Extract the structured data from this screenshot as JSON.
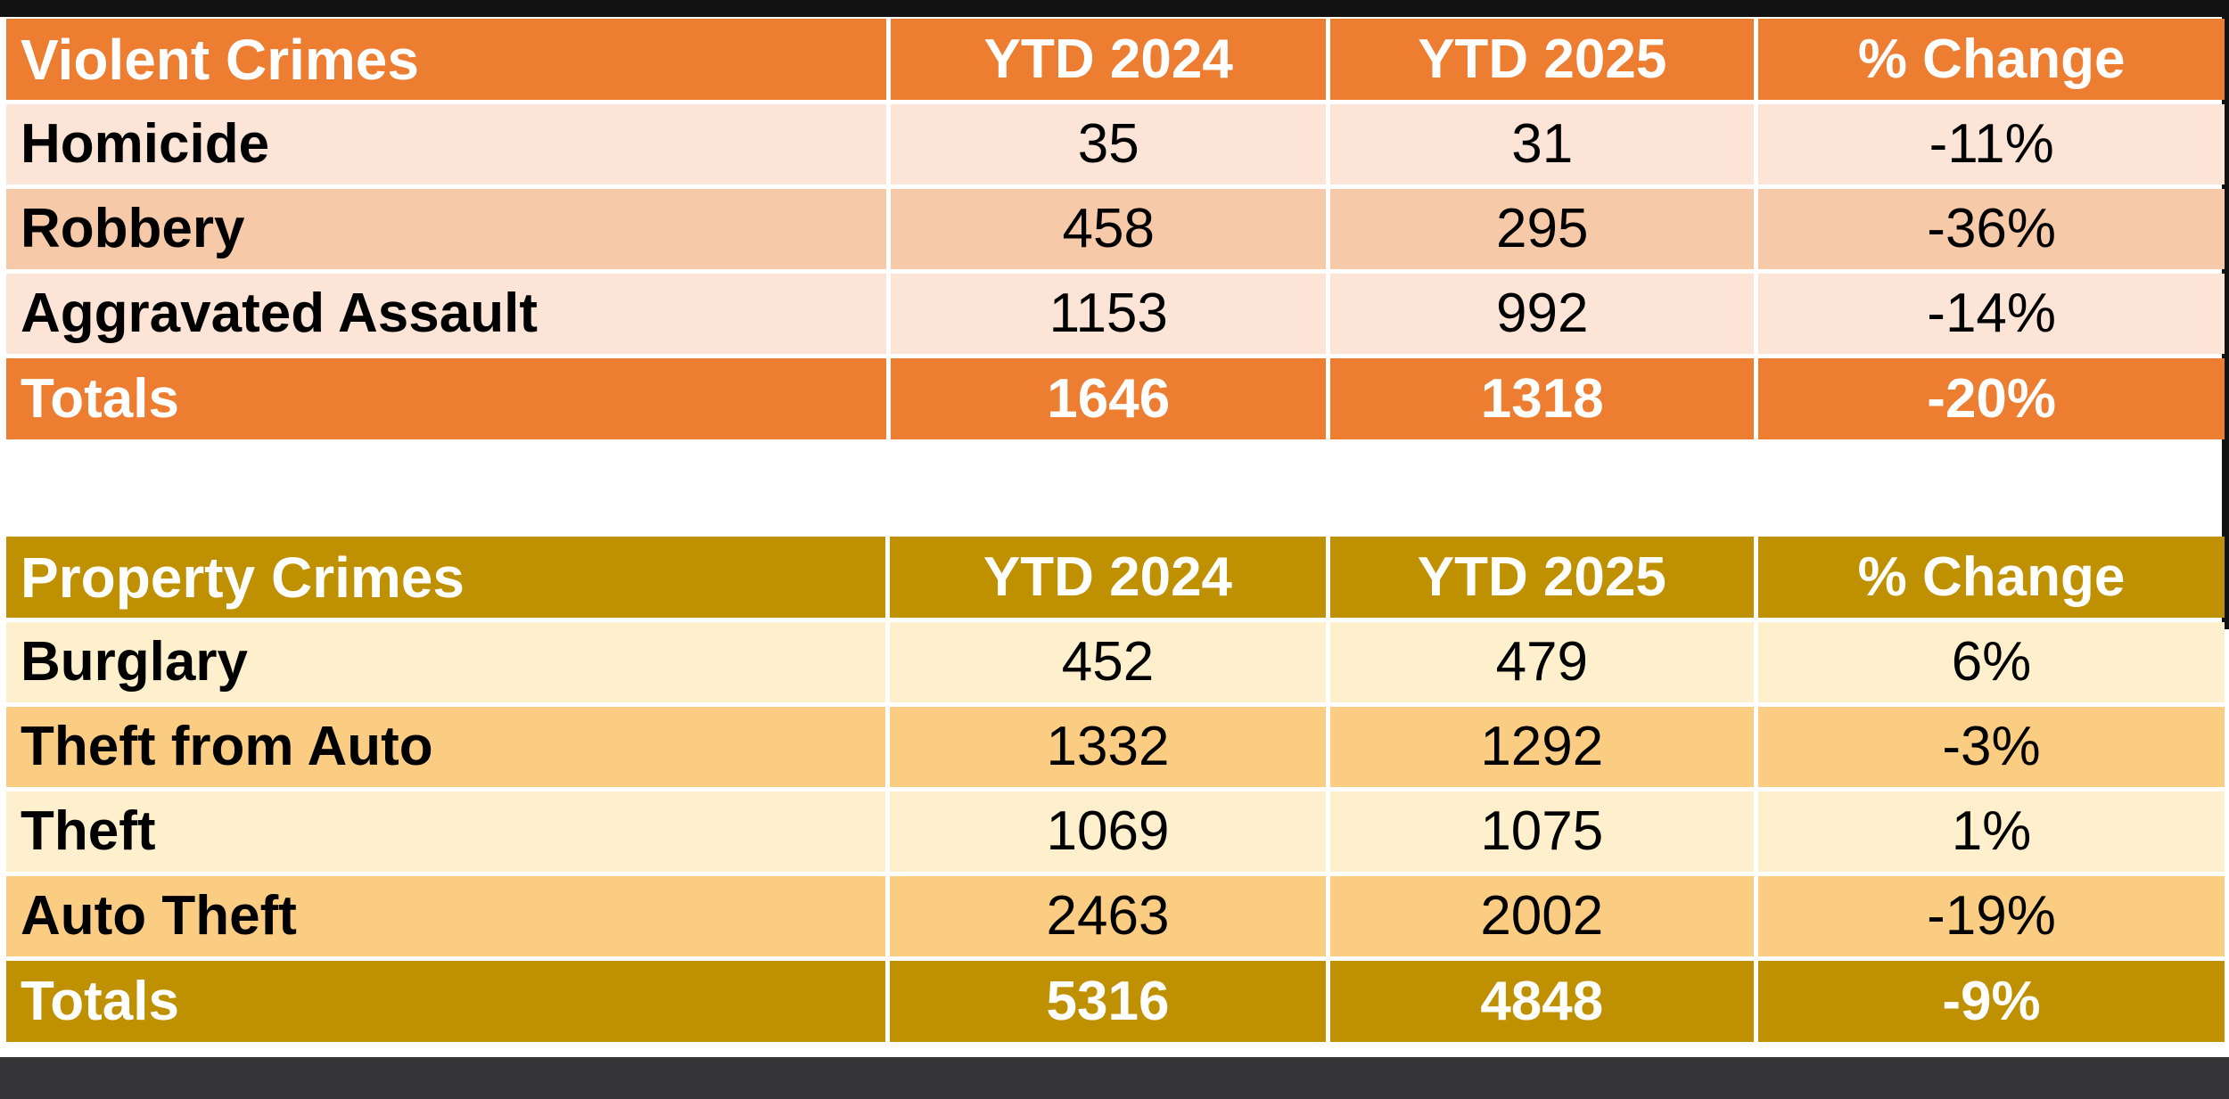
{
  "chrome": {
    "top_bar_color": "#111111",
    "right_edge_color": "#111111",
    "bottom_bar_color": "#353537",
    "page_background": "#ffffff"
  },
  "violent_table": {
    "title": "Violent Crimes",
    "columns": [
      "YTD 2024",
      "YTD 2025",
      "% Change"
    ],
    "theme": {
      "header_bg": "#ED7D31",
      "row_light": "#FCE4D6",
      "row_dark": "#F6C9A9",
      "header_text": "#ffffff",
      "body_text": "#000000"
    },
    "rows": [
      {
        "label": "Homicide",
        "ytd2024": "35",
        "ytd2025": "31",
        "pct_change": "-11%"
      },
      {
        "label": "Robbery",
        "ytd2024": "458",
        "ytd2025": "295",
        "pct_change": "-36%"
      },
      {
        "label": "Aggravated Assault",
        "ytd2024": "1153",
        "ytd2025": "992",
        "pct_change": "-14%"
      }
    ],
    "totals": {
      "label": "Totals",
      "ytd2024": "1646",
      "ytd2025": "1318",
      "pct_change": "-20%"
    }
  },
  "property_table": {
    "title": "Property Crimes",
    "columns": [
      "YTD 2024",
      "YTD 2025",
      "% Change"
    ],
    "theme": {
      "header_bg": "#BF9000",
      "row_light": "#FEF0CD",
      "row_dark": "#FACD82",
      "header_text": "#ffffff",
      "body_text": "#000000"
    },
    "rows": [
      {
        "label": "Burglary",
        "ytd2024": "452",
        "ytd2025": "479",
        "pct_change": "6%"
      },
      {
        "label": "Theft from Auto",
        "ytd2024": "1332",
        "ytd2025": "1292",
        "pct_change": "-3%"
      },
      {
        "label": "Theft",
        "ytd2024": "1069",
        "ytd2025": "1075",
        "pct_change": "1%"
      },
      {
        "label": "Auto Theft",
        "ytd2024": "2463",
        "ytd2025": "2002",
        "pct_change": "-19%"
      }
    ],
    "totals": {
      "label": "Totals",
      "ytd2024": "5316",
      "ytd2025": "4848",
      "pct_change": "-9%"
    }
  }
}
